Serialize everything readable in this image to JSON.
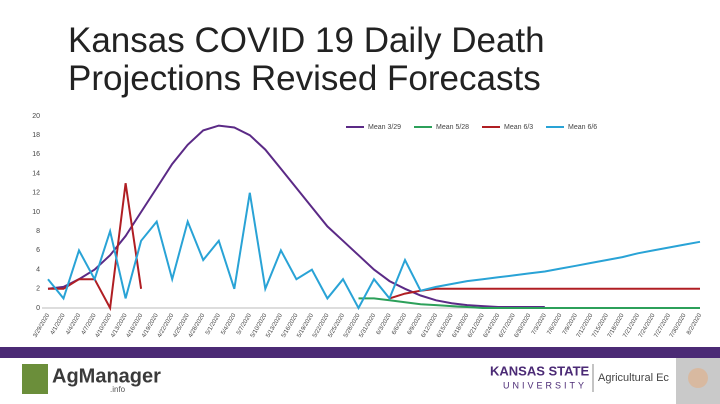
{
  "chart_data": {
    "type": "line",
    "title": "Kansas COVID 19 Daily Death Projections Revised Forecasts",
    "categories": [
      "3/29/2020",
      "4/1/2020",
      "4/4/2020",
      "4/7/2020",
      "4/10/2020",
      "4/13/2020",
      "4/16/2020",
      "4/19/2020",
      "4/22/2020",
      "4/25/2020",
      "4/28/2020",
      "5/1/2020",
      "5/4/2020",
      "5/7/2020",
      "5/10/2020",
      "5/13/2020",
      "5/16/2020",
      "5/19/2020",
      "5/22/2020",
      "5/25/2020",
      "5/28/2020",
      "5/31/2020",
      "6/3/2020",
      "6/6/2020",
      "6/9/2020",
      "6/12/2020",
      "6/15/2020",
      "6/18/2020",
      "6/21/2020",
      "6/24/2020",
      "6/27/2020",
      "6/30/2020",
      "7/3/2020",
      "7/6/2020",
      "7/9/2020",
      "7/12/2020",
      "7/15/2020",
      "7/18/2020",
      "7/21/2020",
      "7/24/2020",
      "7/27/2020",
      "7/30/2020",
      "8/2/2020"
    ],
    "series": [
      {
        "name": "Mean 3/29",
        "color": "#5b2a86",
        "values": [
          2,
          2.2,
          3,
          4,
          5.5,
          7.5,
          10,
          12.5,
          15,
          17,
          18.5,
          19,
          18.8,
          18,
          16.5,
          14.5,
          12.5,
          10.5,
          8.5,
          7,
          5.5,
          4,
          2.8,
          2,
          1.3,
          0.8,
          0.5,
          0.3,
          0.2,
          0.1,
          0.1,
          0.1,
          0.1,
          null,
          null,
          null,
          null,
          null,
          null,
          null,
          null,
          null,
          null
        ]
      },
      {
        "name": "Mean 5/28",
        "color": "#2ca05a",
        "values": [
          null,
          null,
          null,
          null,
          null,
          null,
          null,
          null,
          null,
          null,
          null,
          null,
          null,
          null,
          null,
          null,
          null,
          null,
          null,
          null,
          1,
          1,
          0.8,
          0.6,
          0.4,
          0.3,
          0.2,
          0.1,
          0,
          0,
          0,
          0,
          0,
          0,
          0,
          0,
          0,
          0,
          0,
          0,
          0,
          0,
          0
        ]
      },
      {
        "name": "Mean 6/3",
        "color": "#b01e23",
        "values": [
          2,
          2,
          3,
          3,
          0,
          13,
          2,
          null,
          null,
          null,
          null,
          null,
          null,
          null,
          null,
          null,
          null,
          null,
          null,
          null,
          null,
          null,
          1,
          1.5,
          1.8,
          2,
          2,
          2,
          2,
          2,
          2,
          2,
          2,
          2,
          2,
          2,
          2,
          2,
          2,
          2,
          2,
          2,
          2
        ]
      },
      {
        "name": "Mean 6/6",
        "color": "#29a3d6",
        "values": [
          3,
          1,
          6,
          3,
          8,
          1,
          7,
          9,
          3,
          9,
          5,
          7,
          2,
          12,
          2,
          6,
          3,
          4,
          1,
          3,
          0,
          3,
          1,
          5,
          1.8,
          2.2,
          2.5,
          2.8,
          3,
          3.2,
          3.4,
          3.6,
          3.8,
          4.1,
          4.4,
          4.7,
          5,
          5.3,
          5.7,
          6,
          6.3,
          6.6,
          6.9
        ]
      }
    ],
    "ylim": [
      0,
      20
    ],
    "yticks": [
      0,
      2,
      4,
      6,
      8,
      10,
      12,
      14,
      16,
      18,
      20
    ],
    "grid": false,
    "legend": "top"
  },
  "footer": {
    "logo": "AgManager",
    "logo_suffix": ".info",
    "university": "KANSAS STATE",
    "university_sub": "UNIVERSITY",
    "department": "Agricultural Ec"
  }
}
